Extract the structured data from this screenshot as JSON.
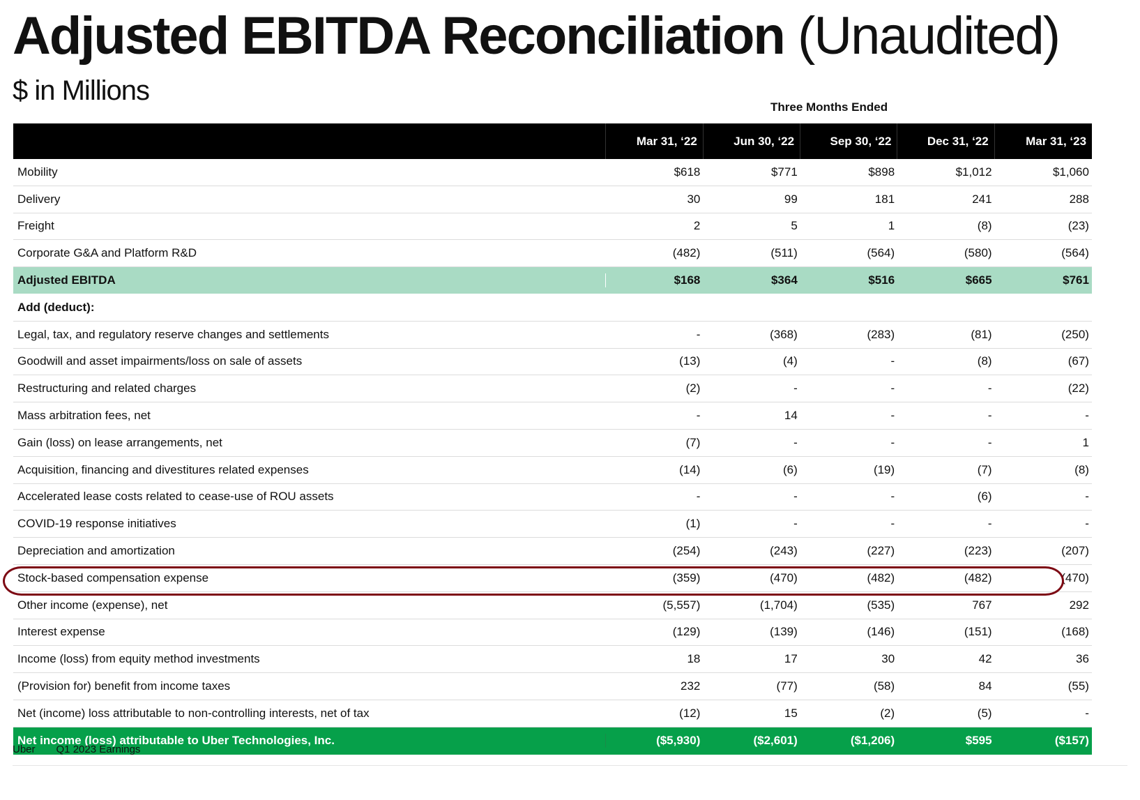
{
  "title_bold": "Adjusted EBITDA Reconciliation",
  "title_light": "(Unaudited)",
  "subtitle": "$ in Millions",
  "period_caption": "Three Months Ended",
  "columns": [
    "Mar 31, ‘22",
    "Jun 30, ‘22",
    "Sep 30, ‘22",
    "Dec 31, ‘22",
    "Mar 31, ‘23"
  ],
  "rows": [
    {
      "label": "Mobility",
      "values": [
        "$618",
        "$771",
        "$898",
        "$1,012",
        "$1,060"
      ]
    },
    {
      "label": "Delivery",
      "values": [
        "30",
        "99",
        "181",
        "241",
        "288"
      ]
    },
    {
      "label": "Freight",
      "values": [
        "2",
        "5",
        "1",
        "(8)",
        "(23)"
      ]
    },
    {
      "label": "Corporate G&A and Platform R&D",
      "values": [
        "(482)",
        "(511)",
        "(564)",
        "(580)",
        "(564)"
      ]
    },
    {
      "label": "Adjusted EBITDA",
      "values": [
        "$168",
        "$364",
        "$516",
        "$665",
        "$761"
      ]
    },
    {
      "label": "Add (deduct):",
      "values": [
        "",
        "",
        "",
        "",
        ""
      ]
    },
    {
      "label": "Legal, tax, and regulatory reserve changes and settlements",
      "values": [
        "-",
        "(368)",
        "(283)",
        "(81)",
        "(250)"
      ]
    },
    {
      "label": "Goodwill and asset impairments/loss on sale of assets",
      "values": [
        "(13)",
        "(4)",
        "-",
        "(8)",
        "(67)"
      ]
    },
    {
      "label": "Restructuring and related charges",
      "values": [
        "(2)",
        "-",
        "-",
        "-",
        "(22)"
      ]
    },
    {
      "label": "Mass arbitration fees, net",
      "values": [
        "-",
        "14",
        "-",
        "-",
        "-"
      ]
    },
    {
      "label": "Gain (loss) on lease arrangements, net",
      "values": [
        "(7)",
        "-",
        "-",
        "-",
        "1"
      ]
    },
    {
      "label": "Acquisition, financing and divestitures related expenses",
      "values": [
        "(14)",
        "(6)",
        "(19)",
        "(7)",
        "(8)"
      ]
    },
    {
      "label": "Accelerated lease costs related to cease-use of ROU assets",
      "values": [
        "-",
        "-",
        "-",
        "(6)",
        "-"
      ]
    },
    {
      "label": "COVID-19 response initiatives",
      "values": [
        "(1)",
        "-",
        "-",
        "-",
        "-"
      ]
    },
    {
      "label": "Depreciation and amortization",
      "values": [
        "(254)",
        "(243)",
        "(227)",
        "(223)",
        "(207)"
      ]
    },
    {
      "label": "Stock-based compensation expense",
      "values": [
        "(359)",
        "(470)",
        "(482)",
        "(482)",
        "(470)"
      ]
    },
    {
      "label": "Other income (expense), net",
      "values": [
        "(5,557)",
        "(1,704)",
        "(535)",
        "767",
        "292"
      ]
    },
    {
      "label": "Interest expense",
      "values": [
        "(129)",
        "(139)",
        "(146)",
        "(151)",
        "(168)"
      ]
    },
    {
      "label": "Income (loss) from equity method investments",
      "values": [
        "18",
        "17",
        "30",
        "42",
        "36"
      ]
    },
    {
      "label": "(Provision for) benefit from income taxes",
      "values": [
        "232",
        "(77)",
        "(58)",
        "84",
        "(55)"
      ]
    },
    {
      "label": "Net (income) loss attributable to non-controlling interests, net of tax",
      "values": [
        "(12)",
        "15",
        "(2)",
        "(5)",
        "-"
      ]
    },
    {
      "label": "Net income (loss) attributable to Uber Technologies, Inc.",
      "values": [
        "($5,930)",
        "($2,601)",
        "($1,206)",
        "$595",
        "($157)"
      ]
    }
  ],
  "footer": {
    "brand": "Uber",
    "report": "Q1 2023 Earnings"
  },
  "colors": {
    "subtotal_bg": "#a9dbc4",
    "total_bg": "#06a04a",
    "header_bg": "#000000",
    "highlight": "#7d0a14"
  }
}
